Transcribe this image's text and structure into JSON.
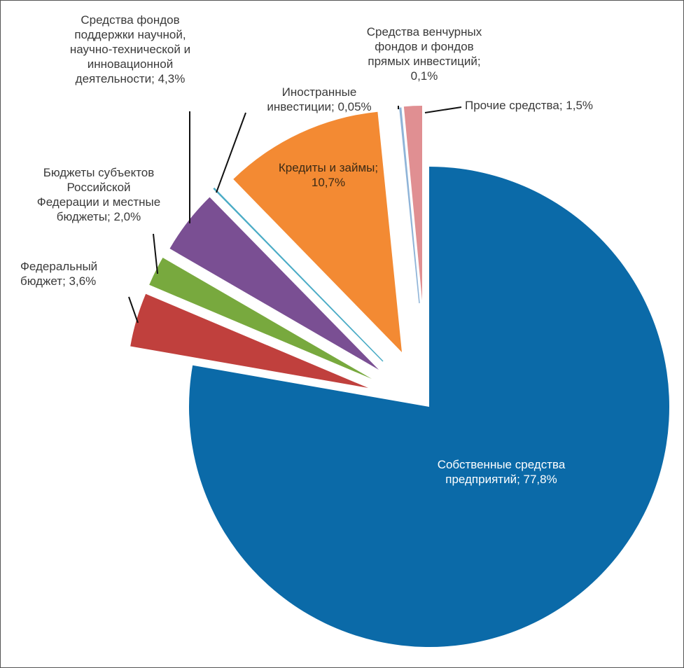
{
  "chart_data": {
    "type": "pie",
    "title": "",
    "start_angle": "12 o'clock, clockwise",
    "slices": [
      {
        "label": "Собственные средства предприятий; 77,8%",
        "name": "Собственные средства предприятий",
        "value": 77.8,
        "color": "#0b6aa8"
      },
      {
        "label": "Федеральный бюджет; 3,6%",
        "name": "Федеральный бюджет",
        "value": 3.6,
        "color": "#c0403d"
      },
      {
        "label": "Бюджеты субъектов Российской Федерации и местные бюджеты; 2,0%",
        "name": "Бюджеты субъектов Российской Федерации и местные бюджеты",
        "value": 2.0,
        "color": "#78a93e"
      },
      {
        "label": "Средства фондов поддержки научной, научно-технической и инновационной деятельности; 4,3%",
        "name": "Средства фондов поддержки научной, научно-технической и инновационной деятельности",
        "value": 4.3,
        "color": "#7a4f93"
      },
      {
        "label": "Иностранные инвестиции; 0,05%",
        "name": "Иностранные инвестиции",
        "value": 0.05,
        "color": "#4bacc6"
      },
      {
        "label": "Кредиты и займы; 10,7%",
        "name": "Кредиты и займы",
        "value": 10.7,
        "color": "#f38a33"
      },
      {
        "label": "Средства венчурных фондов и фондов прямых инвестиций; 0,1%",
        "name": "Средства венчурных фондов и фондов прямых инвестиций",
        "value": 0.1,
        "color": "#8fb4d8"
      },
      {
        "label": "Прочие средства; 1,5%",
        "name": "Прочие средства",
        "value": 1.5,
        "color": "#e08f92"
      }
    ],
    "labels_text": {
      "own": "Собственные средства\nпредприятий; 77,8%",
      "federal": "Федеральный\nбюджет; 3,6%",
      "regional": "Бюджеты субъектов\nРоссийской\nФедерации и местные\nбюджеты; 2,0%",
      "funds": "Средства фондов\nподдержки научной,\nнаучно-технической и\nинновационной\nдеятельности; 4,3%",
      "foreign": "Иностранные\nинвестиции; 0,05%",
      "credits": "Кредиты и займы;\n10,7%",
      "venture": "Средства венчурных\nфондов и фондов\nпрямых инвестиций;\n0,1%",
      "other": "Прочие средства; 1,5%"
    }
  }
}
